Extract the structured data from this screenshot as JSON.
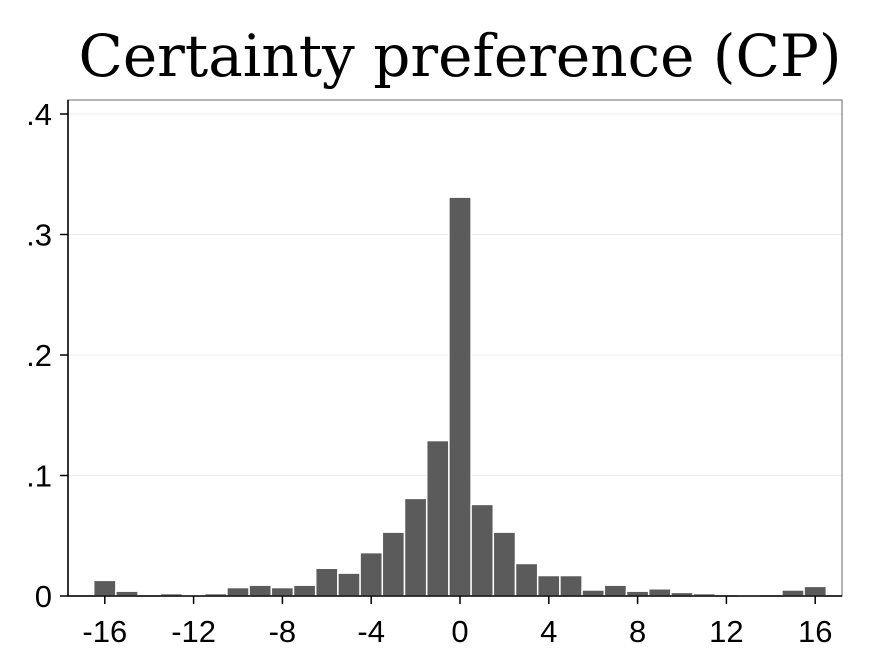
{
  "chart_data": {
    "type": "bar",
    "title": "Certainty preference (CP)",
    "xlabel": "",
    "ylabel": "",
    "xlim": [
      -17,
      17
    ],
    "ylim": [
      0,
      0.4
    ],
    "bin_width": 1,
    "grid": true,
    "legend": "none",
    "bar_color": "#5b5b5b",
    "x_ticks": [
      {
        "value": -16,
        "label": "-16"
      },
      {
        "value": -12,
        "label": "-12"
      },
      {
        "value": -8,
        "label": "-8"
      },
      {
        "value": -4,
        "label": "-4"
      },
      {
        "value": 0,
        "label": "0"
      },
      {
        "value": 4,
        "label": "4"
      },
      {
        "value": 8,
        "label": "8"
      },
      {
        "value": 12,
        "label": "12"
      },
      {
        "value": 16,
        "label": "16"
      }
    ],
    "y_ticks": [
      {
        "value": 0,
        "label": "0"
      },
      {
        "value": 0.1,
        "label": ".1"
      },
      {
        "value": 0.2,
        "label": ".2"
      },
      {
        "value": 0.3,
        "label": ".3"
      },
      {
        "value": 0.4,
        "label": ".4"
      }
    ],
    "bins": [
      {
        "x": -16,
        "density": 0.013
      },
      {
        "x": -15,
        "density": 0.004
      },
      {
        "x": -13,
        "density": 0.002
      },
      {
        "x": -12,
        "density": 0.001
      },
      {
        "x": -11,
        "density": 0.002
      },
      {
        "x": -10,
        "density": 0.007
      },
      {
        "x": -9,
        "density": 0.009
      },
      {
        "x": -8,
        "density": 0.007
      },
      {
        "x": -7,
        "density": 0.009
      },
      {
        "x": -6,
        "density": 0.023
      },
      {
        "x": -5,
        "density": 0.019
      },
      {
        "x": -4,
        "density": 0.036
      },
      {
        "x": -3,
        "density": 0.053
      },
      {
        "x": -2,
        "density": 0.081
      },
      {
        "x": -1,
        "density": 0.129
      },
      {
        "x": 0,
        "density": 0.331
      },
      {
        "x": 1,
        "density": 0.076
      },
      {
        "x": 2,
        "density": 0.053
      },
      {
        "x": 3,
        "density": 0.027
      },
      {
        "x": 4,
        "density": 0.017
      },
      {
        "x": 5,
        "density": 0.017
      },
      {
        "x": 6,
        "density": 0.005
      },
      {
        "x": 7,
        "density": 0.009
      },
      {
        "x": 8,
        "density": 0.004
      },
      {
        "x": 9,
        "density": 0.006
      },
      {
        "x": 10,
        "density": 0.003
      },
      {
        "x": 11,
        "density": 0.002
      },
      {
        "x": 13,
        "density": 0.001
      },
      {
        "x": 15,
        "density": 0.005
      },
      {
        "x": 16,
        "density": 0.008
      }
    ]
  }
}
